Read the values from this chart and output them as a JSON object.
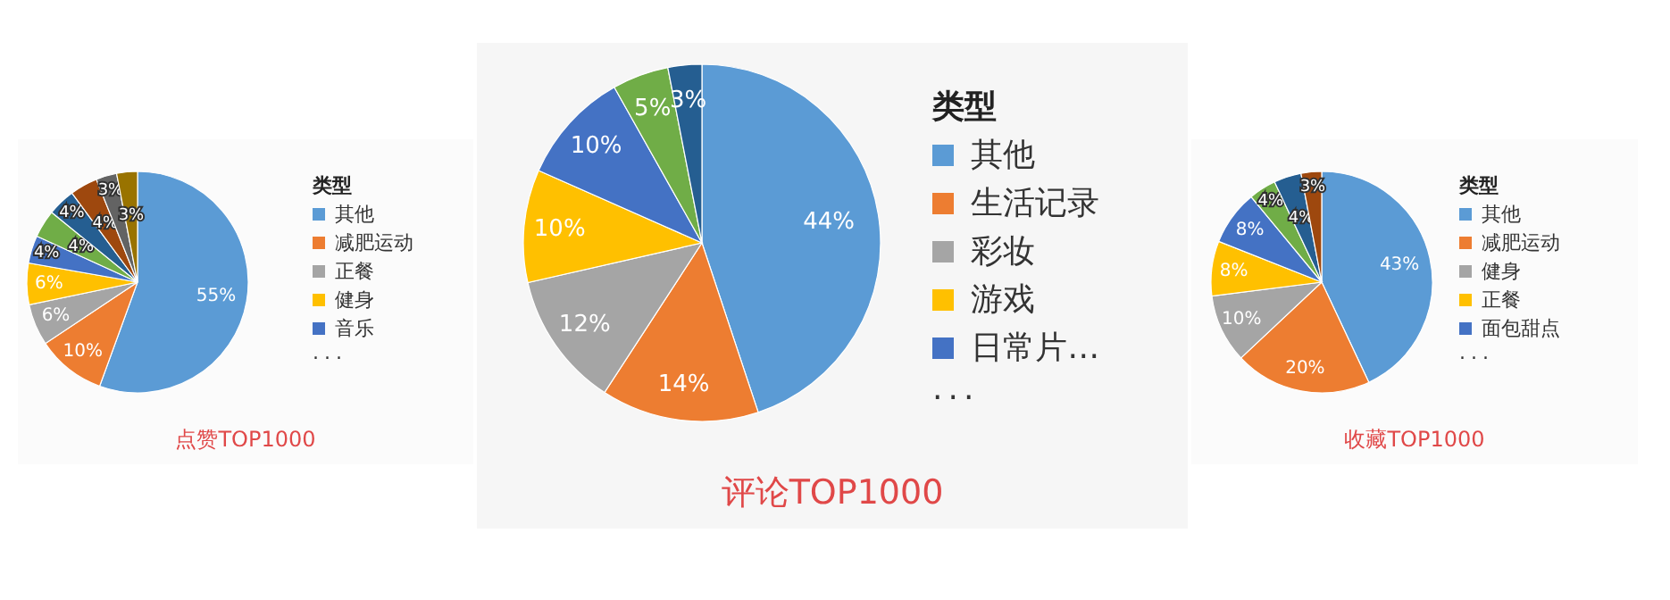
{
  "chart_data": [
    {
      "type": "pie",
      "title": "点赞TOP1000",
      "legend_title": "类型",
      "legend": "right",
      "annotations": [
        "..."
      ],
      "value_labels": [
        "55%",
        "10%",
        "6%",
        "6%",
        "4%",
        "4%",
        "4%",
        "4%",
        "3%",
        "3%"
      ],
      "categories": [
        "其他",
        "减肥运动",
        "正餐",
        "健身",
        "音乐",
        null,
        null,
        null,
        null,
        null
      ],
      "values": [
        55,
        10,
        6,
        6,
        4,
        4,
        4,
        4,
        3,
        3
      ],
      "colors": [
        "#5b9bd5",
        "#ed7d31",
        "#a5a5a5",
        "#ffc000",
        "#4472c4",
        "#70ad47",
        "#255e91",
        "#9e480e",
        "#636363",
        "#997300"
      ]
    },
    {
      "type": "pie",
      "title": "评论TOP1000",
      "legend_title": "类型",
      "legend": "right",
      "annotations": [
        "..."
      ],
      "value_labels": [
        "44%",
        "14%",
        "12%",
        "10%",
        "10%",
        "5%",
        "3%"
      ],
      "categories": [
        "其他",
        "生活记录",
        "彩妆",
        "游戏",
        "日常片…",
        null,
        null
      ],
      "values": [
        44,
        14,
        12,
        10,
        10,
        5,
        3
      ],
      "colors": [
        "#5b9bd5",
        "#ed7d31",
        "#a5a5a5",
        "#ffc000",
        "#4472c4",
        "#70ad47",
        "#255e91"
      ]
    },
    {
      "type": "pie",
      "title": "收藏TOP1000",
      "legend_title": "类型",
      "legend": "right",
      "annotations": [
        "..."
      ],
      "value_labels": [
        "43%",
        "20%",
        "10%",
        "8%",
        "8%",
        "4%",
        "4%",
        "3%"
      ],
      "categories": [
        "其他",
        "减肥运动",
        "健身",
        "正餐",
        "面包甜点",
        null,
        null,
        null
      ],
      "values": [
        43,
        20,
        10,
        8,
        8,
        4,
        4,
        3
      ],
      "colors": [
        "#5b9bd5",
        "#ed7d31",
        "#a5a5a5",
        "#ffc000",
        "#4472c4",
        "#70ad47",
        "#255e91",
        "#9e480e"
      ]
    }
  ]
}
